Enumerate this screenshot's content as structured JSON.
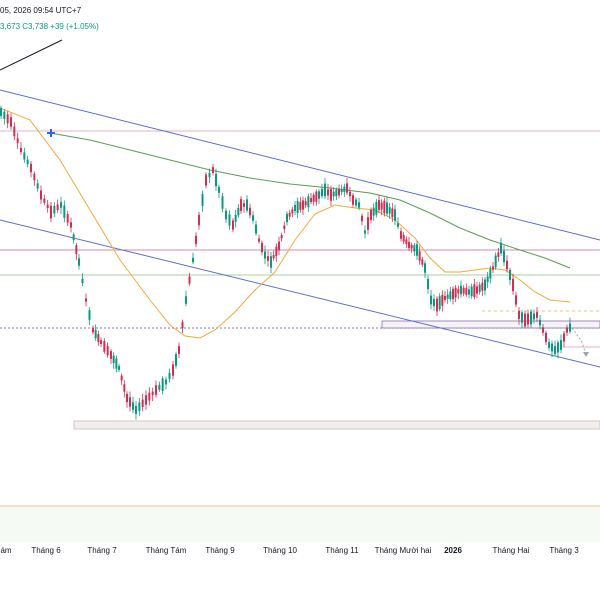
{
  "header": {
    "datetime": "05, 2026 09:54 UTC+7",
    "ohlc_tail": "3,673",
    "close": "C3,738",
    "change": "+39 (+1.05%)"
  },
  "chart_data": {
    "type": "candlestick",
    "x_ticks": [
      "ám",
      "Tháng 6",
      "Tháng 7",
      "Tháng Tám",
      "Tháng 9",
      "Tháng 10",
      "Tháng 11",
      "Tháng Mười hai",
      "2026",
      "Tháng Hai",
      "Tháng 3"
    ],
    "bold_ticks": [
      "2026"
    ],
    "colors": {
      "up": "#089981",
      "down": "#d62c50",
      "channel": "#5b6fc7",
      "ma_fast": "#f2a93b",
      "ma_slow": "#5b9b5a",
      "zone_fill": "#f3eeee",
      "h_line_pink": "#e6b3c3",
      "h_line_green": "#a8d0a0",
      "h_line_orange": "#f0c070",
      "dotted_line": "#8a6fa8",
      "arrow_line": "#131722"
    }
  }
}
